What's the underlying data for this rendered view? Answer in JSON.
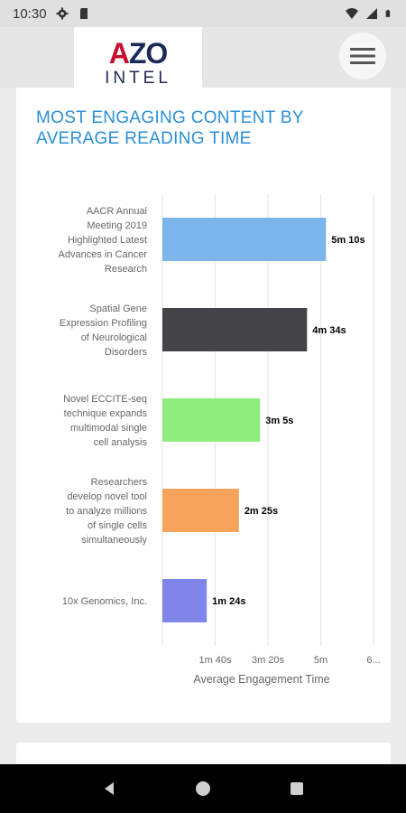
{
  "status_bar": {
    "time": "10:30",
    "icons": [
      "gear-icon",
      "sd-card-icon",
      "wifi-icon",
      "signal-icon",
      "battery-icon"
    ]
  },
  "header": {
    "logo_primary": "AZO",
    "logo_secondary": "INTEL",
    "menu_icon": "hamburger-icon"
  },
  "card": {
    "title": "MOST ENGAGING CONTENT BY AVERAGE READING TIME"
  },
  "chart_data": {
    "type": "bar",
    "orientation": "horizontal",
    "categories": [
      "AACR Annual Meeting 2019 Highlighted Latest Advances in Cancer Research",
      "Spatial Gene Expression Profiling of Neurological Disorders",
      "Novel ECCITE-seq technique expands multimodal single cell analysis",
      "Researchers develop novel tool to analyze millions of single cells simultaneously",
      "10x Genomics, Inc."
    ],
    "category_lines": [
      [
        "AACR Annual",
        "Meeting 2019",
        "Highlighted Latest",
        "Advances in Cancer",
        "Research"
      ],
      [
        "Spatial Gene",
        "Expression Profiling",
        "of Neurological",
        "Disorders"
      ],
      [
        "Novel ECCITE-seq",
        "technique expands",
        "multimodal single",
        "cell analysis"
      ],
      [
        "Researchers",
        "develop novel tool",
        "to analyze millions",
        "of single cells",
        "simultaneously"
      ],
      [
        "10x Genomics, Inc."
      ]
    ],
    "values": [
      310,
      274,
      185,
      145,
      84
    ],
    "value_labels": [
      "5m 10s",
      "4m 34s",
      "3m 5s",
      "2m 25s",
      "1m 24s"
    ],
    "colors": [
      "#7cb5ec",
      "#434348",
      "#90ed7d",
      "#f7a35c",
      "#8085e9"
    ],
    "xticks": [
      100,
      200,
      300,
      400
    ],
    "xtick_labels": [
      "1m 40s",
      "3m 20s",
      "5m",
      "6..."
    ],
    "xlim": [
      0,
      400
    ],
    "xlabel": "Average Engagement Time",
    "grid": true
  }
}
